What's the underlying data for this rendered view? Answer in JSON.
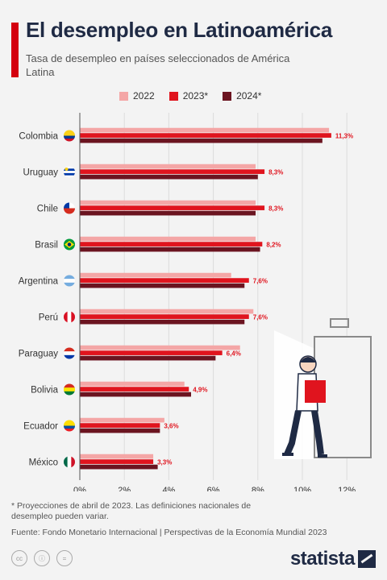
{
  "header": {
    "title": "El desempleo en Latinoamérica",
    "subtitle": "Tasa de desempleo en países seleccionados de América Latina"
  },
  "legend": [
    {
      "label": "2022",
      "color": "#f4a6a6"
    },
    {
      "label": "2023*",
      "color": "#e0141e"
    },
    {
      "label": "2024*",
      "color": "#6b1420"
    }
  ],
  "chart_data": {
    "type": "bar",
    "orientation": "horizontal",
    "categories": [
      "Colombia",
      "Uruguay",
      "Chile",
      "Brasil",
      "Argentina",
      "Perú",
      "Paraguay",
      "Bolivia",
      "Ecuador",
      "México"
    ],
    "series": [
      {
        "name": "2022",
        "values": [
          11.2,
          7.9,
          7.9,
          7.9,
          6.8,
          7.8,
          7.2,
          4.7,
          3.8,
          3.3
        ]
      },
      {
        "name": "2023*",
        "values": [
          11.3,
          8.3,
          8.3,
          8.2,
          7.6,
          7.6,
          6.4,
          4.9,
          3.6,
          3.3
        ]
      },
      {
        "name": "2024*",
        "values": [
          10.9,
          8.0,
          7.9,
          8.1,
          7.4,
          7.4,
          6.1,
          5.0,
          3.6,
          3.5
        ]
      }
    ],
    "data_labels": [
      "11,3%",
      "8,3%",
      "8,3%",
      "8,2%",
      "7,6%",
      "7,6%",
      "6,4%",
      "4,9%",
      "3,6%",
      "3,3%"
    ],
    "xticks": [
      "0%",
      "2%",
      "4%",
      "6%",
      "8%",
      "10%",
      "12%"
    ],
    "xlim": [
      0,
      13
    ],
    "grid": true,
    "legend_position": "top"
  },
  "flags": [
    "flag-colombia",
    "flag-uruguay",
    "flag-chile",
    "flag-brazil",
    "flag-argentina",
    "flag-peru",
    "flag-paraguay",
    "flag-bolivia",
    "flag-ecuador",
    "flag-mexico"
  ],
  "footer": {
    "note": "* Proyecciones de abril de 2023. Las definiciones nacionales de desempleo pueden variar.",
    "source": "Fuente: Fondo Monetario Internacional | Perspectivas de la Economía Mundial 2023",
    "license_icons": [
      "cc-icon",
      "attribution-icon",
      "no-derivatives-icon"
    ],
    "brand": "statista"
  }
}
